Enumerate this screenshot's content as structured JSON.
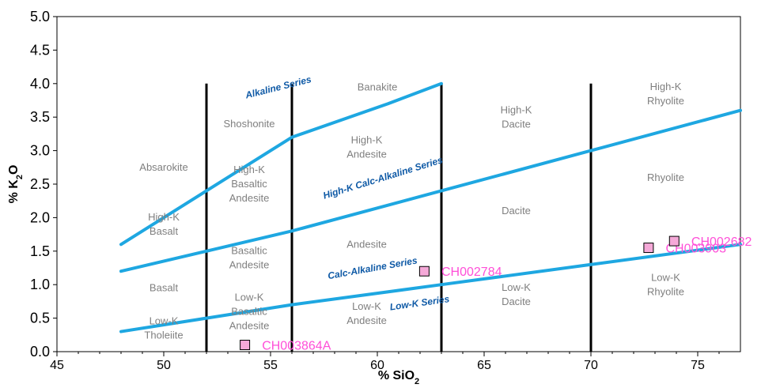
{
  "chart_data": {
    "type": "scatter",
    "xlabel": "% SiO2",
    "ylabel": "% K2O",
    "xlim": [
      45,
      77
    ],
    "ylim": [
      0,
      5
    ],
    "grid": false,
    "x_ticks": [
      45,
      50,
      55,
      60,
      65,
      70,
      75
    ],
    "y_ticks": [
      0.0,
      0.5,
      1.0,
      1.5,
      2.0,
      2.5,
      3.0,
      3.5,
      4.0,
      4.5,
      5.0
    ],
    "y_tick_labels": [
      "0.0",
      "0.5",
      "1.0",
      "1.5",
      "2.0",
      "2.5",
      "3.0",
      "3.5",
      "4.0",
      "4.5",
      "5.0"
    ],
    "colors": {
      "boundary": "#1ea7e1",
      "divider": "#000000",
      "field_text": "#7f7f7f",
      "series_text": "#0f5aa6",
      "sample_fill": "#f5a9d8",
      "sample_text": "#ff4fd8"
    },
    "boundaries": [
      {
        "name": "Alkaline Series",
        "x": [
          48,
          52,
          56,
          60.5,
          63
        ],
        "y": [
          1.6,
          2.4,
          3.2,
          3.7,
          4.0
        ]
      },
      {
        "name": "High-K Calc-Alkaline Series",
        "x": [
          48,
          52,
          56,
          63,
          70,
          77
        ],
        "y": [
          1.2,
          1.5,
          1.8,
          2.4,
          3.0,
          3.6
        ]
      },
      {
        "name": "Low-K Series",
        "x": [
          48,
          52,
          56,
          63,
          70,
          77
        ],
        "y": [
          0.3,
          0.5,
          0.7,
          1.0,
          1.3,
          1.6
        ]
      }
    ],
    "dividers": [
      {
        "x": 52,
        "y": [
          0,
          4
        ]
      },
      {
        "x": 56,
        "y": [
          0,
          4
        ]
      },
      {
        "x": 63,
        "y": [
          0,
          4
        ]
      },
      {
        "x": 70,
        "y": [
          0,
          4
        ]
      }
    ],
    "fields": [
      {
        "lines": [
          "Absarokite"
        ],
        "x": 50.0,
        "y": 2.7
      },
      {
        "lines": [
          "Shoshonite"
        ],
        "x": 54.0,
        "y": 3.35
      },
      {
        "lines": [
          "Banakite"
        ],
        "x": 60.0,
        "y": 3.9
      },
      {
        "lines": [
          "High-K",
          "Basaltic",
          "Andesite"
        ],
        "x": 54.0,
        "y": 2.45
      },
      {
        "lines": [
          "High-K",
          "Andesite"
        ],
        "x": 59.5,
        "y": 3.0
      },
      {
        "lines": [
          "High-K",
          "Dacite"
        ],
        "x": 66.5,
        "y": 3.45
      },
      {
        "lines": [
          "High-K",
          "Rhyolite"
        ],
        "x": 73.5,
        "y": 3.8
      },
      {
        "lines": [
          "High-K",
          "Basalt"
        ],
        "x": 50.0,
        "y": 1.85
      },
      {
        "lines": [
          "Basaltic",
          "Andesite"
        ],
        "x": 54.0,
        "y": 1.35
      },
      {
        "lines": [
          "Andesite"
        ],
        "x": 59.5,
        "y": 1.55
      },
      {
        "lines": [
          "Dacite"
        ],
        "x": 66.5,
        "y": 2.05
      },
      {
        "lines": [
          "Rhyolite"
        ],
        "x": 73.5,
        "y": 2.55
      },
      {
        "lines": [
          "Basalt"
        ],
        "x": 50.0,
        "y": 0.9
      },
      {
        "lines": [
          "Low-K",
          "Tholeiite"
        ],
        "x": 50.0,
        "y": 0.3
      },
      {
        "lines": [
          "Low-K",
          "Basaltic",
          "Andesite"
        ],
        "x": 54.0,
        "y": 0.55
      },
      {
        "lines": [
          "Low-K",
          "Andesite"
        ],
        "x": 59.5,
        "y": 0.52
      },
      {
        "lines": [
          "Low-K",
          "Dacite"
        ],
        "x": 66.5,
        "y": 0.8
      },
      {
        "lines": [
          "Low-K",
          "Rhyolite"
        ],
        "x": 73.5,
        "y": 0.95
      }
    ],
    "series_labels": [
      {
        "text": "Alkaline Series",
        "x": 55.4,
        "y": 3.9,
        "angle": 14
      },
      {
        "text": "High-K Calc-Alkaline Series",
        "x": 60.3,
        "y": 2.55,
        "angle": 17
      },
      {
        "text": "Calc-Alkaline Series",
        "x": 59.8,
        "y": 1.2,
        "angle": 10
      },
      {
        "text": "Low-K Series",
        "x": 62.0,
        "y": 0.68,
        "angle": 8
      }
    ],
    "samples": [
      {
        "name": "CH003864A",
        "label": "CH003864A",
        "x": 53.8,
        "y": 0.1,
        "lx": 54.6,
        "ly": 0.03
      },
      {
        "name": "CH002784",
        "label": "CH002784",
        "x": 62.2,
        "y": 1.2,
        "lx": 63.0,
        "ly": 1.13
      },
      {
        "name": "CH003903",
        "label": "CH003903",
        "x": 72.7,
        "y": 1.55,
        "lx": 73.5,
        "ly": 1.48
      },
      {
        "name": "CH002682",
        "label": "CH002682",
        "x": 73.9,
        "y": 1.65,
        "lx": 74.7,
        "ly": 1.58
      }
    ]
  }
}
